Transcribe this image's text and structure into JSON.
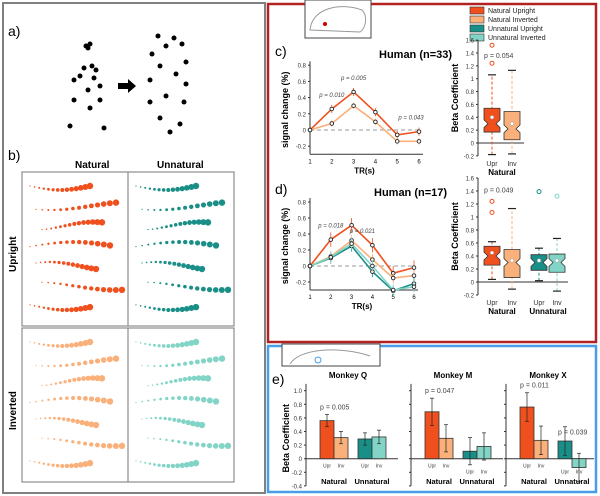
{
  "colors": {
    "natural_upright": "#f0501e",
    "natural_inverted": "#f9b07a",
    "unnatural_upright": "#1a8f87",
    "unnatural_inverted": "#82d5c6",
    "human_frame": "#b22222",
    "monkey_frame": "#4a9ee8",
    "left_frame": "#808080"
  },
  "panel_a": {
    "label": "a)"
  },
  "panel_b": {
    "label": "b)",
    "col_natural": "Natural",
    "col_unnatural": "Unnatural",
    "row_upright": "Upright",
    "row_inverted": "Inverted"
  },
  "legend": {
    "items": [
      "Natural Upright",
      "Natural Inverted",
      "Unnatural Upright",
      "Unnatural Inverted"
    ]
  },
  "chart_data": [
    {
      "id": "c-line",
      "type": "line",
      "panel_label": "c)",
      "title": "Human (n=33)",
      "xlabel": "TR(s)",
      "ylabel": "signal change (%)",
      "x": [
        1,
        2,
        3,
        4,
        5,
        6
      ],
      "ylim": [
        -0.3,
        0.8
      ],
      "yticks": [
        "-0.2",
        "0",
        "0.2",
        "0.4",
        "0.6",
        "0.8"
      ],
      "yvals": [
        -0.2,
        0,
        0.2,
        0.4,
        0.6,
        0.8
      ],
      "series": [
        {
          "name": "Natural Upright",
          "values": [
            0,
            0.26,
            0.47,
            0.22,
            -0.06,
            -0.02
          ],
          "err": 0.05
        },
        {
          "name": "Natural Inverted",
          "values": [
            0,
            0.08,
            0.3,
            0.1,
            -0.14,
            -0.14
          ],
          "err": 0.04
        }
      ],
      "annotations": [
        {
          "text": "p = 0.010",
          "x": 2
        },
        {
          "text": "p = 0.005",
          "x": 3
        },
        {
          "text": "p = 0.043",
          "x": 6
        }
      ]
    },
    {
      "id": "c-box",
      "type": "box",
      "ylabel": "Beta Coefficient",
      "ylim": [
        -0.2,
        1.6
      ],
      "yticks": [
        "-0.2",
        "0",
        "0.2",
        "0.4",
        "0.6",
        "0.8",
        "1",
        "1.2",
        "1.4",
        "1.6"
      ],
      "yvals": [
        -0.2,
        0,
        0.2,
        0.4,
        0.6,
        0.8,
        1,
        1.2,
        1.4,
        1.6
      ],
      "categories": [
        "Upr",
        "Inv"
      ],
      "groups": [
        "Natural"
      ],
      "annotation": "p = 0.054",
      "boxes": [
        {
          "name": "Natural Upright",
          "q1": 0.17,
          "median": 0.3,
          "q3": 0.54,
          "whisker_low": -0.18,
          "whisker_high": 1.06,
          "mean": 0.4,
          "outliers": [
            1.24,
            1.52
          ]
        },
        {
          "name": "Natural Inverted",
          "q1": 0.05,
          "median": 0.22,
          "q3": 0.49,
          "whisker_low": -0.17,
          "whisker_high": 1.13,
          "mean": 0.3,
          "outliers": []
        }
      ]
    },
    {
      "id": "d-line",
      "type": "line",
      "panel_label": "d)",
      "title": "Human (n=17)",
      "xlabel": "TR(s)",
      "ylabel": "signal change (%)",
      "x": [
        1,
        2,
        3,
        4,
        5,
        6
      ],
      "ylim": [
        -0.3,
        0.8
      ],
      "yticks": [
        "-0.2",
        "0",
        "0.2",
        "0.4",
        "0.6",
        "0.8"
      ],
      "yvals": [
        -0.2,
        0,
        0.2,
        0.4,
        0.6,
        0.8
      ],
      "series": [
        {
          "name": "Natural Upright",
          "values": [
            0,
            0.33,
            0.51,
            0.26,
            -0.09,
            -0.02
          ],
          "err": 0.09
        },
        {
          "name": "Natural Inverted",
          "values": [
            0,
            0.12,
            0.32,
            0.08,
            -0.15,
            -0.12
          ],
          "err": 0.07
        },
        {
          "name": "Unnatural Upright",
          "values": [
            0,
            0.1,
            0.25,
            -0.07,
            -0.31,
            -0.22
          ],
          "err": 0.07
        },
        {
          "name": "Unnatural Inverted",
          "values": [
            0,
            0.11,
            0.28,
            0.0,
            -0.3,
            -0.26
          ],
          "err": 0.07
        }
      ],
      "annotations": [
        {
          "text": "p = 0.018",
          "x": 2
        },
        {
          "text": "p = 0.021",
          "x": 4
        }
      ]
    },
    {
      "id": "d-box",
      "type": "box",
      "ylabel": "Beta Coefficient",
      "ylim": [
        -0.2,
        1.6
      ],
      "yticks": [
        "-0.2",
        "0",
        "0.2",
        "0.4",
        "0.6",
        "0.8",
        "1",
        "1.2",
        "1.4",
        "1.6"
      ],
      "yvals": [
        -0.2,
        0,
        0.2,
        0.4,
        0.6,
        0.8,
        1,
        1.2,
        1.4,
        1.6
      ],
      "categories": [
        "Upr",
        "Inv",
        "Upr",
        "Inv"
      ],
      "groups": [
        "Natural",
        "Unnatural"
      ],
      "annotation": "p = 0.049",
      "boxes": [
        {
          "name": "Natural Upright",
          "q1": 0.26,
          "median": 0.4,
          "q3": 0.55,
          "whisker_low": 0.04,
          "whisker_high": 0.62,
          "mean": 0.45,
          "outliers": [
            1.07,
            1.24
          ]
        },
        {
          "name": "Natural Inverted",
          "q1": 0.07,
          "median": 0.3,
          "q3": 0.5,
          "whisker_low": -0.11,
          "whisker_high": 1.13,
          "mean": 0.33,
          "outliers": []
        },
        {
          "name": "Unnatural Upright",
          "q1": 0.18,
          "median": 0.3,
          "q3": 0.42,
          "whisker_low": 0.02,
          "whisker_high": 0.52,
          "mean": 0.33,
          "outliers": [
            1.39
          ]
        },
        {
          "name": "Unnatural Inverted",
          "q1": 0.15,
          "median": 0.3,
          "q3": 0.43,
          "whisker_low": -0.14,
          "whisker_high": 0.67,
          "mean": 0.33,
          "outliers": [
            1.32
          ]
        }
      ]
    },
    {
      "id": "e-bars",
      "type": "bar",
      "panel_label": "e)",
      "ylabel": "Beta Coefficient",
      "ylim": [
        -0.4,
        1.0
      ],
      "yticks": [
        "-0.4",
        "-0.2",
        "0",
        "0.2",
        "0.4",
        "0.6",
        "0.8",
        "1.0"
      ],
      "yvals": [
        -0.4,
        -0.2,
        0,
        0.2,
        0.4,
        0.6,
        0.8,
        1.0
      ],
      "categories": [
        "Upr",
        "Inv",
        "Upr",
        "Inv"
      ],
      "groups": [
        "Natural",
        "Unnatural"
      ],
      "panels": [
        {
          "title": "Monkey Q",
          "values": [
            0.56,
            0.31,
            0.29,
            0.32
          ],
          "err": [
            0.09,
            0.09,
            0.09,
            0.1
          ],
          "annotations": [
            "p = 0.005"
          ]
        },
        {
          "title": "Monkey M",
          "values": [
            0.69,
            0.3,
            0.11,
            0.18
          ],
          "err": [
            0.2,
            0.2,
            0.2,
            0.2
          ],
          "annotations": [
            "p = 0.047"
          ]
        },
        {
          "title": "Monkey X",
          "values": [
            0.76,
            0.27,
            0.26,
            -0.13
          ],
          "err": [
            0.21,
            0.21,
            0.21,
            0.21
          ],
          "annotations": [
            "p = 0.011",
            "p = 0.039"
          ]
        }
      ]
    }
  ]
}
